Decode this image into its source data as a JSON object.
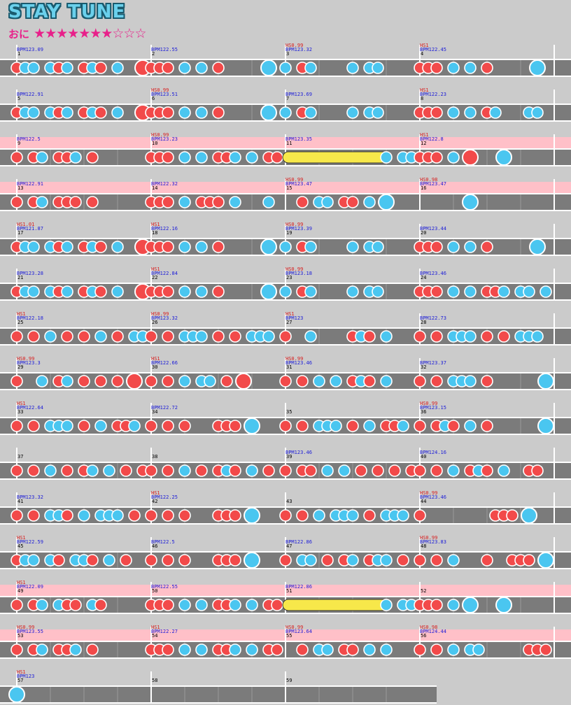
{
  "title": "STAY TUNE",
  "difficulty": {
    "label": "おに",
    "level": 7,
    "max": 10
  },
  "rows": [
    {
      "bg": false,
      "m": [
        {
          "n": "1",
          "bpm": "BPM123.09",
          "notes": "dkk0kdk0dkd0k00D"
        },
        {
          "n": "2",
          "bpm": "BPM122.55",
          "notes": "ddd0k0k0d00000K0"
        },
        {
          "n": "3",
          "hs": "HS0.99",
          "bpm": "BPM123.32",
          "notes": "k0dk0000k0kk0000"
        },
        {
          "n": "4",
          "hs": "HS1",
          "bpm": "BPM122.45",
          "notes": "ddd0k0k0d00000K0"
        }
      ]
    },
    {
      "bg": false,
      "m": [
        {
          "n": "5",
          "bpm": "BPM122.91",
          "notes": "dkk0kdk0dkd0k00D"
        },
        {
          "n": "6",
          "hs": "HS0.99",
          "bpm": "BPM123.51",
          "notes": "ddd0k0k0d00000K0"
        },
        {
          "n": "7",
          "bpm": "BPM123.69",
          "notes": "k0dk0000k0kk0000"
        },
        {
          "n": "8",
          "hs": "HS1",
          "bpm": "BPM122.23",
          "notes": "ddd0k0k0dk000kk0"
        }
      ]
    },
    {
      "bg": true,
      "m": [
        {
          "n": "9",
          "bpm": "BPM122.5",
          "notes": "d0dk0ddk0d000000"
        },
        {
          "n": "10",
          "hs": "HS0.99",
          "bpm": "BPM123.23",
          "notes": "ddd0k0k0ddk0k0dd"
        },
        {
          "n": "11",
          "bpm": "BPM123.35",
          "notes": "R00000000000k0kk"
        },
        {
          "n": "12",
          "hs": "HS1",
          "bpm": "BPM122.8",
          "notes": "ddd0k0D000K00000"
        }
      ]
    },
    {
      "bg": true,
      "m": [
        {
          "n": "13",
          "bpm": "BPM122.91",
          "notes": "d0dk0ddd0d000000"
        },
        {
          "n": "14",
          "bpm": "BPM122.32",
          "notes": "ddd0k0ddd0k000k0"
        },
        {
          "n": "15",
          "hs": "HS0.99",
          "bpm": "BPM123.47",
          "notes": "00d0kk0dd0k0K000"
        },
        {
          "n": "16",
          "hs": "HS0.98",
          "bpm": "BPM123.47",
          "notes": "000000K000000000"
        }
      ]
    },
    {
      "bg": false,
      "m": [
        {
          "n": "17",
          "hs": "HS1.01",
          "bpm": "BPM121.87",
          "notes": "dkk0kdk0dkd0k00D"
        },
        {
          "n": "18",
          "hs": "HS1",
          "bpm": "BPM122.16",
          "notes": "ddd0k0k0d00000K0"
        },
        {
          "n": "19",
          "hs": "HS0.99",
          "bpm": "BPM123.39",
          "notes": "k0dk0000k0kk0000"
        },
        {
          "n": "20",
          "bpm": "BPM123.44",
          "notes": "ddd0k0k0d00000K0"
        }
      ]
    },
    {
      "bg": false,
      "m": [
        {
          "n": "21",
          "bpm": "BPM123.28",
          "notes": "dkk0kdk0dkd0k00D"
        },
        {
          "n": "22",
          "hs": "HS1",
          "bpm": "BPM122.84",
          "notes": "ddd0k0k0d00000K0"
        },
        {
          "n": "23",
          "hs": "HS0.99",
          "bpm": "BPM123.18",
          "notes": "k0dk0000k0kk0000"
        },
        {
          "n": "24",
          "bpm": "BPM123.46",
          "notes": "ddd0k0k0ddk0kk0k"
        }
      ]
    },
    {
      "bg": false,
      "m": [
        {
          "n": "25",
          "hs": "HS1",
          "bpm": "BPM122.18",
          "notes": "d0d0k0d0d0k0d0kk"
        },
        {
          "n": "26",
          "hs": "HS0.99",
          "bpm": "BPM123.32",
          "notes": "d0d0kkk0d0d0kkk0"
        },
        {
          "n": "27",
          "hs": "HS1",
          "bpm": "BPM123",
          "notes": "d00k0000dkd0k000"
        },
        {
          "n": "28",
          "bpm": "BPM122.73",
          "notes": "d0d0kkk0d0d0kkk0"
        }
      ]
    },
    {
      "bg": false,
      "m": [
        {
          "n": "29",
          "hs": "HS0.99",
          "bpm": "BPM123.3",
          "notes": "d00k0dk0d0d0d0D0"
        },
        {
          "n": "30",
          "hs": "HS1",
          "bpm": "BPM122.66",
          "notes": "d0d0k0kk0d0D0000"
        },
        {
          "n": "31",
          "hs": "HS0.99",
          "bpm": "BPM123.46",
          "notes": "d0d0k0k0dkd0k000"
        },
        {
          "n": "32",
          "bpm": "BPM123.37",
          "notes": "d0d0kkk0d000000K"
        }
      ]
    },
    {
      "bg": false,
      "m": [
        {
          "n": "33",
          "hs": "HS1",
          "bpm": "BPM122.64",
          "notes": "d0d0kkk0d0k0ddk0"
        },
        {
          "n": "34",
          "bpm": "BPM122.72",
          "notes": "d0d0d000ddd0K000"
        },
        {
          "n": "35",
          "notes": "d0d0kkk0d0k0ddk0"
        },
        {
          "n": "36",
          "hs": "HS0.99",
          "bpm": "BPM123.15",
          "notes": "d0dkd0k0d000000K"
        }
      ]
    },
    {
      "bg": false,
      "m": [
        {
          "n": "37",
          "notes": "d0d0k0d0dk0k0d0d"
        },
        {
          "n": "38",
          "notes": "d0d0k0d0dkd0k0d0"
        },
        {
          "n": "39",
          "bpm": "BPM123.46",
          "notes": "d0dd0k0k0d0d0d0d"
        },
        {
          "n": "40",
          "bpm": "BPM124.16",
          "notes": "d0d0k0dkd0k00dd0"
        }
      ]
    },
    {
      "bg": false,
      "m": [
        {
          "n": "41",
          "bpm": "BPM123.32",
          "notes": "d0d0kkd0k0kkk0d0"
        },
        {
          "n": "42",
          "hs": "HS1",
          "bpm": "BPM122.25",
          "notes": "d0d0d000ddd0K000"
        },
        {
          "n": "43",
          "notes": "d0d0k0kkk0d0kkk0"
        },
        {
          "n": "44",
          "hs": "HS0.99",
          "bpm": "BPM123.46",
          "notes": "d00000000ddd0K00"
        }
      ]
    },
    {
      "bg": false,
      "m": [
        {
          "n": "45",
          "hs": "HS1",
          "bpm": "BPM122.59",
          "notes": "dkk0kd0kkd0k0d00"
        },
        {
          "n": "46",
          "bpm": "BPM122.5",
          "notes": "d0d0d000ddd0K000"
        },
        {
          "n": "47",
          "bpm": "BPM122.86",
          "notes": "d0kk0d0dk0dkk0d0"
        },
        {
          "n": "48",
          "hs": "HS0.99",
          "bpm": "BPM123.83",
          "notes": "d0d0k000d00ddd0K"
        }
      ]
    },
    {
      "bg": true,
      "m": [
        {
          "n": "49",
          "hs": "HS1",
          "bpm": "BPM122.09",
          "notes": "d0dk0kdd0kd00000"
        },
        {
          "n": "50",
          "bpm": "BPM122.55",
          "notes": "ddd0k0k0ddk0k0dd"
        },
        {
          "n": "51",
          "bpm": "BPM122.86",
          "notes": "R00000000000k0kk"
        },
        {
          "n": "52",
          "notes": "ddd0k0K000K00000"
        }
      ]
    },
    {
      "bg": true,
      "m": [
        {
          "n": "53",
          "hs": "HS0.99",
          "bpm": "BPM123.55",
          "notes": "d0dk0ddk0d000000"
        },
        {
          "n": "54",
          "hs": "HS1",
          "bpm": "BPM122.27",
          "notes": "ddd0k0k0ddk0k0dd"
        },
        {
          "n": "55",
          "hs": "HS0.99",
          "bpm": "BPM123.64",
          "notes": "00d0kk0dd0k0k000"
        },
        {
          "n": "56",
          "hs": "HS0.98",
          "bpm": "BPM124.44",
          "notes": "d0d0k0kk00000ddd"
        }
      ]
    },
    {
      "bg": false,
      "m": [
        {
          "n": "57",
          "hs": "HS1",
          "bpm": "BPM123",
          "notes": "K000000000000000"
        },
        {
          "n": "58",
          "notes": "0000000000000000"
        },
        {
          "n": "59",
          "notes": "0000000000000000"
        }
      ]
    }
  ],
  "colors": {
    "background": "#cbcbcb",
    "lane": "#7b7b7b",
    "highlight": "#ffc0c8",
    "don": "#f24a4a",
    "ka": "#4ac6f0",
    "roll": "#f7e84a",
    "bpm_text": "#1b1bd8",
    "hs_text": "#d81b1b",
    "measure_text": "#000000",
    "title": "#6ad0ec",
    "stars": "#e8208a"
  }
}
